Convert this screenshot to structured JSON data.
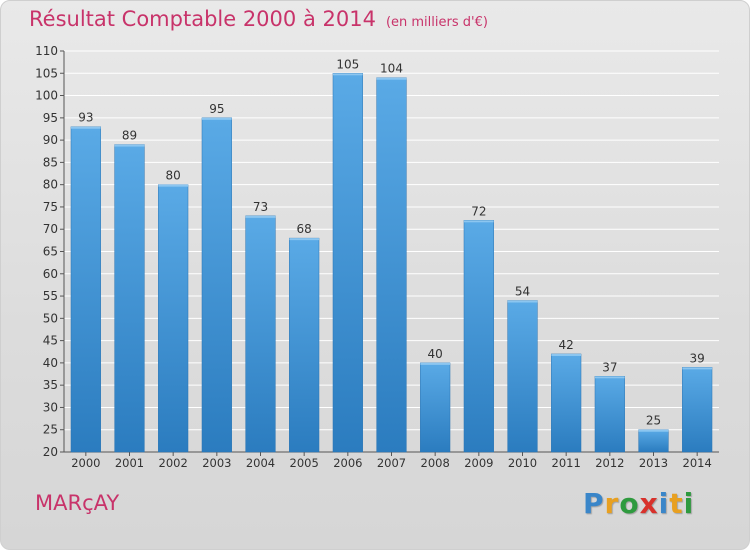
{
  "header": {
    "title": "Résultat Comptable 2000 à 2014",
    "unit": "(en milliers d'€)"
  },
  "commune": "MARçAY",
  "logo": {
    "text": "Proxiti",
    "letters": [
      {
        "ch": "P",
        "color": "#3a86c9"
      },
      {
        "ch": "r",
        "color": "#e8a020"
      },
      {
        "ch": "o",
        "color": "#2e9a3e"
      },
      {
        "ch": "x",
        "color": "#d8312b"
      },
      {
        "ch": "i",
        "color": "#3a86c9"
      },
      {
        "ch": "t",
        "color": "#e8a020"
      },
      {
        "ch": "i",
        "color": "#2e9a3e"
      }
    ]
  },
  "colors": {
    "bar_top": "#5aaae6",
    "bar_bottom": "#2b7cbf",
    "title": "#c8336a"
  },
  "chart_data": {
    "type": "bar",
    "title": "Résultat Comptable 2000 à 2014",
    "subtitle": "(en milliers d'€)",
    "categories": [
      "2000",
      "2001",
      "2002",
      "2003",
      "2004",
      "2005",
      "2006",
      "2007",
      "2008",
      "2009",
      "2010",
      "2011",
      "2012",
      "2013",
      "2014"
    ],
    "values": [
      93,
      89,
      80,
      95,
      73,
      68,
      105,
      104,
      40,
      72,
      54,
      42,
      37,
      25,
      39
    ],
    "ylim": [
      20,
      110
    ],
    "yticks": [
      20,
      25,
      30,
      35,
      40,
      45,
      50,
      55,
      60,
      65,
      70,
      75,
      80,
      85,
      90,
      95,
      100,
      105,
      110
    ],
    "grid": true,
    "data_labels": true
  }
}
